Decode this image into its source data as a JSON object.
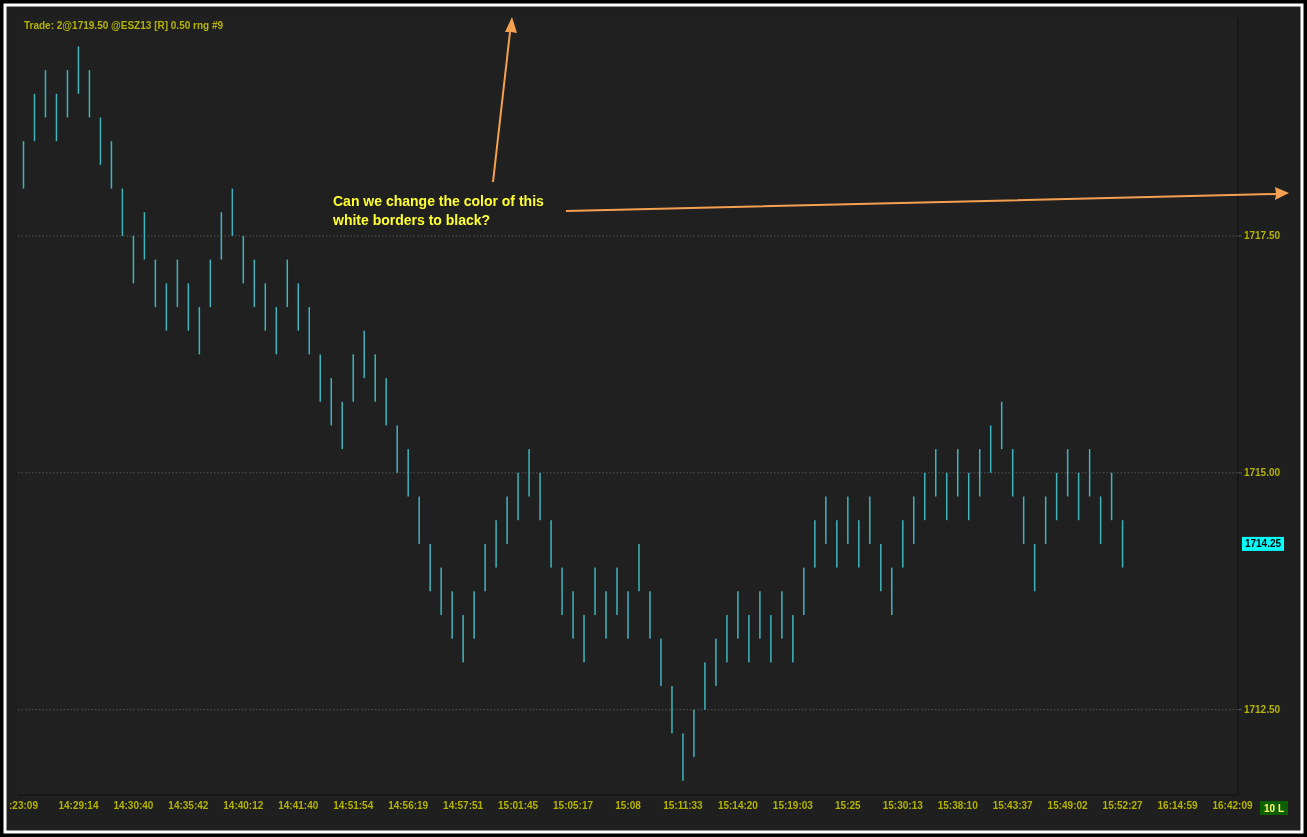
{
  "chart_data": {
    "type": "bar",
    "title": "Trade: 2@1719.50 @ESZ13 [R]  0.50 rng  #9",
    "categories": [
      ":23:09",
      null,
      null,
      null,
      null,
      "14:29:14",
      null,
      null,
      null,
      null,
      "14:30:40",
      null,
      null,
      null,
      null,
      "14:35:42",
      null,
      null,
      null,
      null,
      "14:40:12",
      null,
      null,
      null,
      null,
      "14:41:40",
      null,
      null,
      null,
      null,
      "14:51:54",
      null,
      null,
      null,
      null,
      "14:56:19",
      null,
      null,
      null,
      null,
      "14:57:51",
      null,
      null,
      null,
      null,
      "15:01:45",
      null,
      null,
      null,
      null,
      "15:05:17",
      null,
      null,
      null,
      null,
      "15:08",
      null,
      null,
      null,
      null,
      "15:11:33",
      null,
      null,
      null,
      null,
      "15:14:20",
      null,
      null,
      null,
      null,
      "15:19:03",
      null,
      null,
      null,
      null,
      "15:25",
      null,
      null,
      null,
      null,
      "15:30:13",
      null,
      null,
      null,
      null,
      "15:38:10",
      null,
      null,
      null,
      null,
      "15:43:37",
      null,
      null,
      null,
      null,
      "15:49:02",
      null,
      null,
      null,
      null,
      "15:52:27",
      null,
      null,
      null,
      null,
      "16:14:59",
      null,
      null,
      null,
      null,
      "16:42:09"
    ],
    "values": [
      0.5,
      0.5,
      0.5,
      0.5,
      0.5,
      0.5,
      0.5,
      0.5,
      0.5,
      0.5,
      0.5,
      0.5,
      0.5,
      0.5,
      0.5,
      0.5,
      0.5,
      0.5,
      0.5,
      0.5,
      0.5,
      0.5,
      0.5,
      0.5,
      0.5,
      0.5,
      0.5,
      0.5,
      0.5,
      0.5,
      0.5,
      0.5,
      0.5,
      0.5,
      0.5,
      0.5,
      0.5,
      0.5,
      0.5,
      0.5,
      0.5,
      0.5,
      0.5,
      0.5,
      0.5,
      0.5,
      0.5,
      0.5,
      0.5,
      0.5,
      0.5,
      0.5,
      0.5,
      0.5,
      0.5,
      0.5,
      0.5,
      0.5,
      0.5,
      0.5,
      0.5,
      0.5,
      0.5,
      0.5,
      0.5,
      0.5,
      0.5,
      0.5,
      0.5,
      0.5,
      0.5,
      0.5,
      0.5,
      0.5,
      0.5,
      0.5,
      0.5,
      0.5,
      0.5,
      0.5,
      0.5,
      0.5,
      0.5,
      0.5,
      0.5,
      0.5,
      0.5,
      0.5,
      0.5,
      0.5,
      0.5,
      0.5,
      0.5,
      0.5,
      0.5,
      0.5,
      0.5,
      0.5,
      0.5,
      0.5,
      0.5,
      null,
      null,
      null,
      null,
      null,
      null,
      null,
      null,
      null,
      null
    ],
    "base": [
      1718.0,
      1718.5,
      1718.75,
      1718.5,
      1718.75,
      1719.0,
      1718.75,
      1718.25,
      1718.0,
      1717.5,
      1717.0,
      1717.25,
      1716.75,
      1716.5,
      1716.75,
      1716.5,
      1716.25,
      1716.75,
      1717.25,
      1717.5,
      1717.0,
      1716.75,
      1716.5,
      1716.25,
      1716.75,
      1716.5,
      1716.25,
      1715.75,
      1715.5,
      1715.25,
      1715.75,
      1716.0,
      1715.75,
      1715.5,
      1715.0,
      1714.75,
      1714.25,
      1713.75,
      1713.5,
      1713.25,
      1713.0,
      1713.25,
      1713.75,
      1714.0,
      1714.25,
      1714.5,
      1714.75,
      1714.5,
      1714.0,
      1713.5,
      1713.25,
      1713.0,
      1713.5,
      1713.25,
      1713.5,
      1713.25,
      1713.75,
      1713.25,
      1712.75,
      1712.25,
      1711.75,
      1712.0,
      1712.5,
      1712.75,
      1713.0,
      1713.25,
      1713.0,
      1713.25,
      1713.0,
      1713.25,
      1713.0,
      1713.5,
      1714.0,
      1714.25,
      1714.0,
      1714.25,
      1714.0,
      1714.25,
      1713.75,
      1713.5,
      1714.0,
      1714.25,
      1714.5,
      1714.75,
      1714.5,
      1714.75,
      1714.5,
      1714.75,
      1715.0,
      1715.25,
      1714.75,
      1714.25,
      1713.75,
      1714.25,
      1714.5,
      1714.75,
      1714.5,
      1714.75,
      1714.25,
      1714.5,
      1714.0,
      null,
      null,
      null,
      null,
      null,
      null,
      null,
      null,
      null,
      null
    ],
    "color": "#40b4bc",
    "ylim": [
      1711.6,
      1719.8
    ],
    "yticks": [
      {
        "value": 1712.5,
        "label": "1712.50"
      },
      {
        "value": 1715,
        "label": "1715.00"
      },
      {
        "value": 1717.5,
        "label": "1717.50"
      }
    ],
    "grid": "y",
    "annotations": [
      "Can we change the color of this white borders to black?",
      "10 L",
      "1714.25"
    ]
  }
}
